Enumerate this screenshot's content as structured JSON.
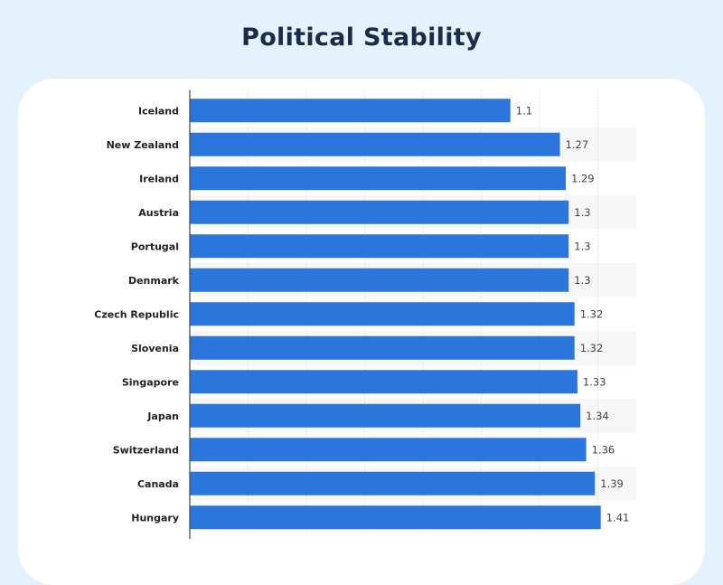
{
  "chart_data": {
    "type": "bar",
    "orientation": "horizontal",
    "title": "Political Stability",
    "categories": [
      "Iceland",
      "New Zealand",
      "Ireland",
      "Austria",
      "Portugal",
      "Denmark",
      "Czech Republic",
      "Slovenia",
      "Singapore",
      "Japan",
      "Switzerland",
      "Canada",
      "Hungary"
    ],
    "values": [
      1.1,
      1.27,
      1.29,
      1.3,
      1.3,
      1.3,
      1.32,
      1.32,
      1.33,
      1.34,
      1.36,
      1.39,
      1.41
    ],
    "value_labels": [
      "1.1",
      "1.27",
      "1.29",
      "1.3",
      "1.3",
      "1.3",
      "1.32",
      "1.32",
      "1.33",
      "1.34",
      "1.36",
      "1.39",
      "1.41"
    ],
    "xlim": [
      0,
      1.5
    ],
    "grid": true,
    "grid_step": 0.2,
    "xlabel": "",
    "ylabel": "",
    "colors": {
      "bar": "#2a76dc",
      "background": "#e4f2fd",
      "card": "#ffffff",
      "title": "#1c2b47",
      "stripe": "#f7f7f7"
    }
  }
}
